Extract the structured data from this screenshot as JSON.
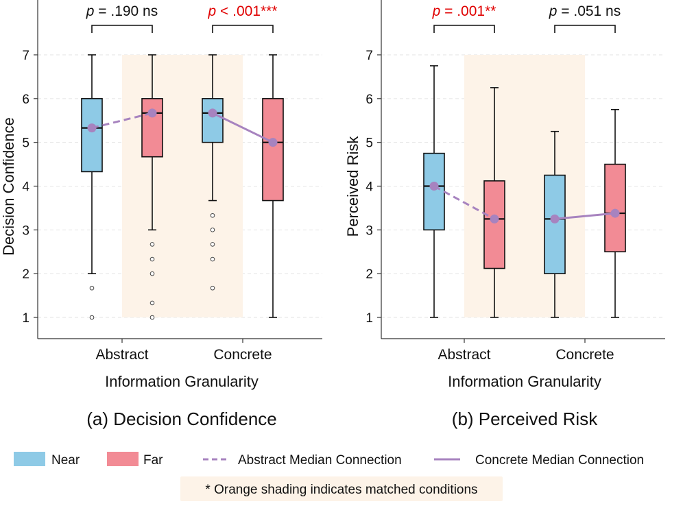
{
  "colors": {
    "near": "#8ecae6",
    "far": "#f28b95",
    "median_line": "#a783bf",
    "shade": "#fdf3e8",
    "sig": "#e00000",
    "nonsig": "#111111"
  },
  "chart_data": [
    {
      "type": "box",
      "id": "a",
      "title": "(a) Decision Confidence",
      "xlabel": "Information Granularity",
      "ylabel": "Decision Confidence",
      "ylim": [
        0.5,
        7.5
      ],
      "yticks": [
        "1",
        "2",
        "3",
        "4",
        "5",
        "6",
        "7"
      ],
      "categories": [
        "Abstract",
        "Concrete"
      ],
      "shaded_category": "Abstract",
      "boxes": [
        {
          "category": "Abstract",
          "group": "Near",
          "whisker_low": 2.0,
          "q1": 4.33,
          "median": 5.33,
          "q3": 6.0,
          "whisker_high": 7.0,
          "outliers": [
            1.67,
            1.0
          ]
        },
        {
          "category": "Abstract",
          "group": "Far",
          "whisker_low": 3.0,
          "q1": 4.67,
          "median": 5.67,
          "q3": 6.0,
          "whisker_high": 7.0,
          "outliers": [
            2.67,
            2.33,
            2.0,
            1.33,
            1.0
          ]
        },
        {
          "category": "Concrete",
          "group": "Near",
          "whisker_low": 3.67,
          "q1": 5.0,
          "median": 5.67,
          "q3": 6.0,
          "whisker_high": 7.0,
          "outliers": [
            3.33,
            3.0,
            2.67,
            2.33,
            1.67
          ]
        },
        {
          "category": "Concrete",
          "group": "Far",
          "whisker_low": 1.0,
          "q1": 3.67,
          "median": 5.0,
          "q3": 6.0,
          "whisker_high": 7.0,
          "outliers": []
        }
      ],
      "annotations": [
        {
          "category": "Abstract",
          "prefix": "p",
          "text": " = .190 ns",
          "significant": false
        },
        {
          "category": "Concrete",
          "prefix": "p",
          "text": " < .001***",
          "significant": true
        }
      ]
    },
    {
      "type": "box",
      "id": "b",
      "title": "(b) Perceived Risk",
      "xlabel": "Information Granularity",
      "ylabel": "Perceived Risk",
      "ylim": [
        0.5,
        7.5
      ],
      "yticks": [
        "1",
        "2",
        "3",
        "4",
        "5",
        "6",
        "7"
      ],
      "categories": [
        "Abstract",
        "Concrete"
      ],
      "shaded_category": "Abstract",
      "boxes": [
        {
          "category": "Abstract",
          "group": "Near",
          "whisker_low": 1.0,
          "q1": 3.0,
          "median": 4.0,
          "q3": 4.75,
          "whisker_high": 6.75,
          "outliers": []
        },
        {
          "category": "Abstract",
          "group": "Far",
          "whisker_low": 1.0,
          "q1": 2.12,
          "median": 3.25,
          "q3": 4.12,
          "whisker_high": 6.25,
          "outliers": []
        },
        {
          "category": "Concrete",
          "group": "Near",
          "whisker_low": 1.0,
          "q1": 2.0,
          "median": 3.25,
          "q3": 4.25,
          "whisker_high": 5.25,
          "outliers": []
        },
        {
          "category": "Concrete",
          "group": "Far",
          "whisker_low": 1.0,
          "q1": 2.5,
          "median": 3.38,
          "q3": 4.5,
          "whisker_high": 5.75,
          "outliers": []
        }
      ],
      "annotations": [
        {
          "category": "Abstract",
          "prefix": "p",
          "text": " = .001**",
          "significant": true
        },
        {
          "category": "Concrete",
          "prefix": "p",
          "text": " = .051 ns",
          "significant": false
        }
      ]
    }
  ],
  "legend": {
    "items": [
      {
        "label": "Near",
        "kind": "patch-near"
      },
      {
        "label": "Far",
        "kind": "patch-far"
      },
      {
        "label": "Abstract Median Connection",
        "kind": "dashed"
      },
      {
        "label": "Concrete Median Connection",
        "kind": "solid"
      }
    ],
    "note": "* Orange shading indicates matched conditions"
  }
}
